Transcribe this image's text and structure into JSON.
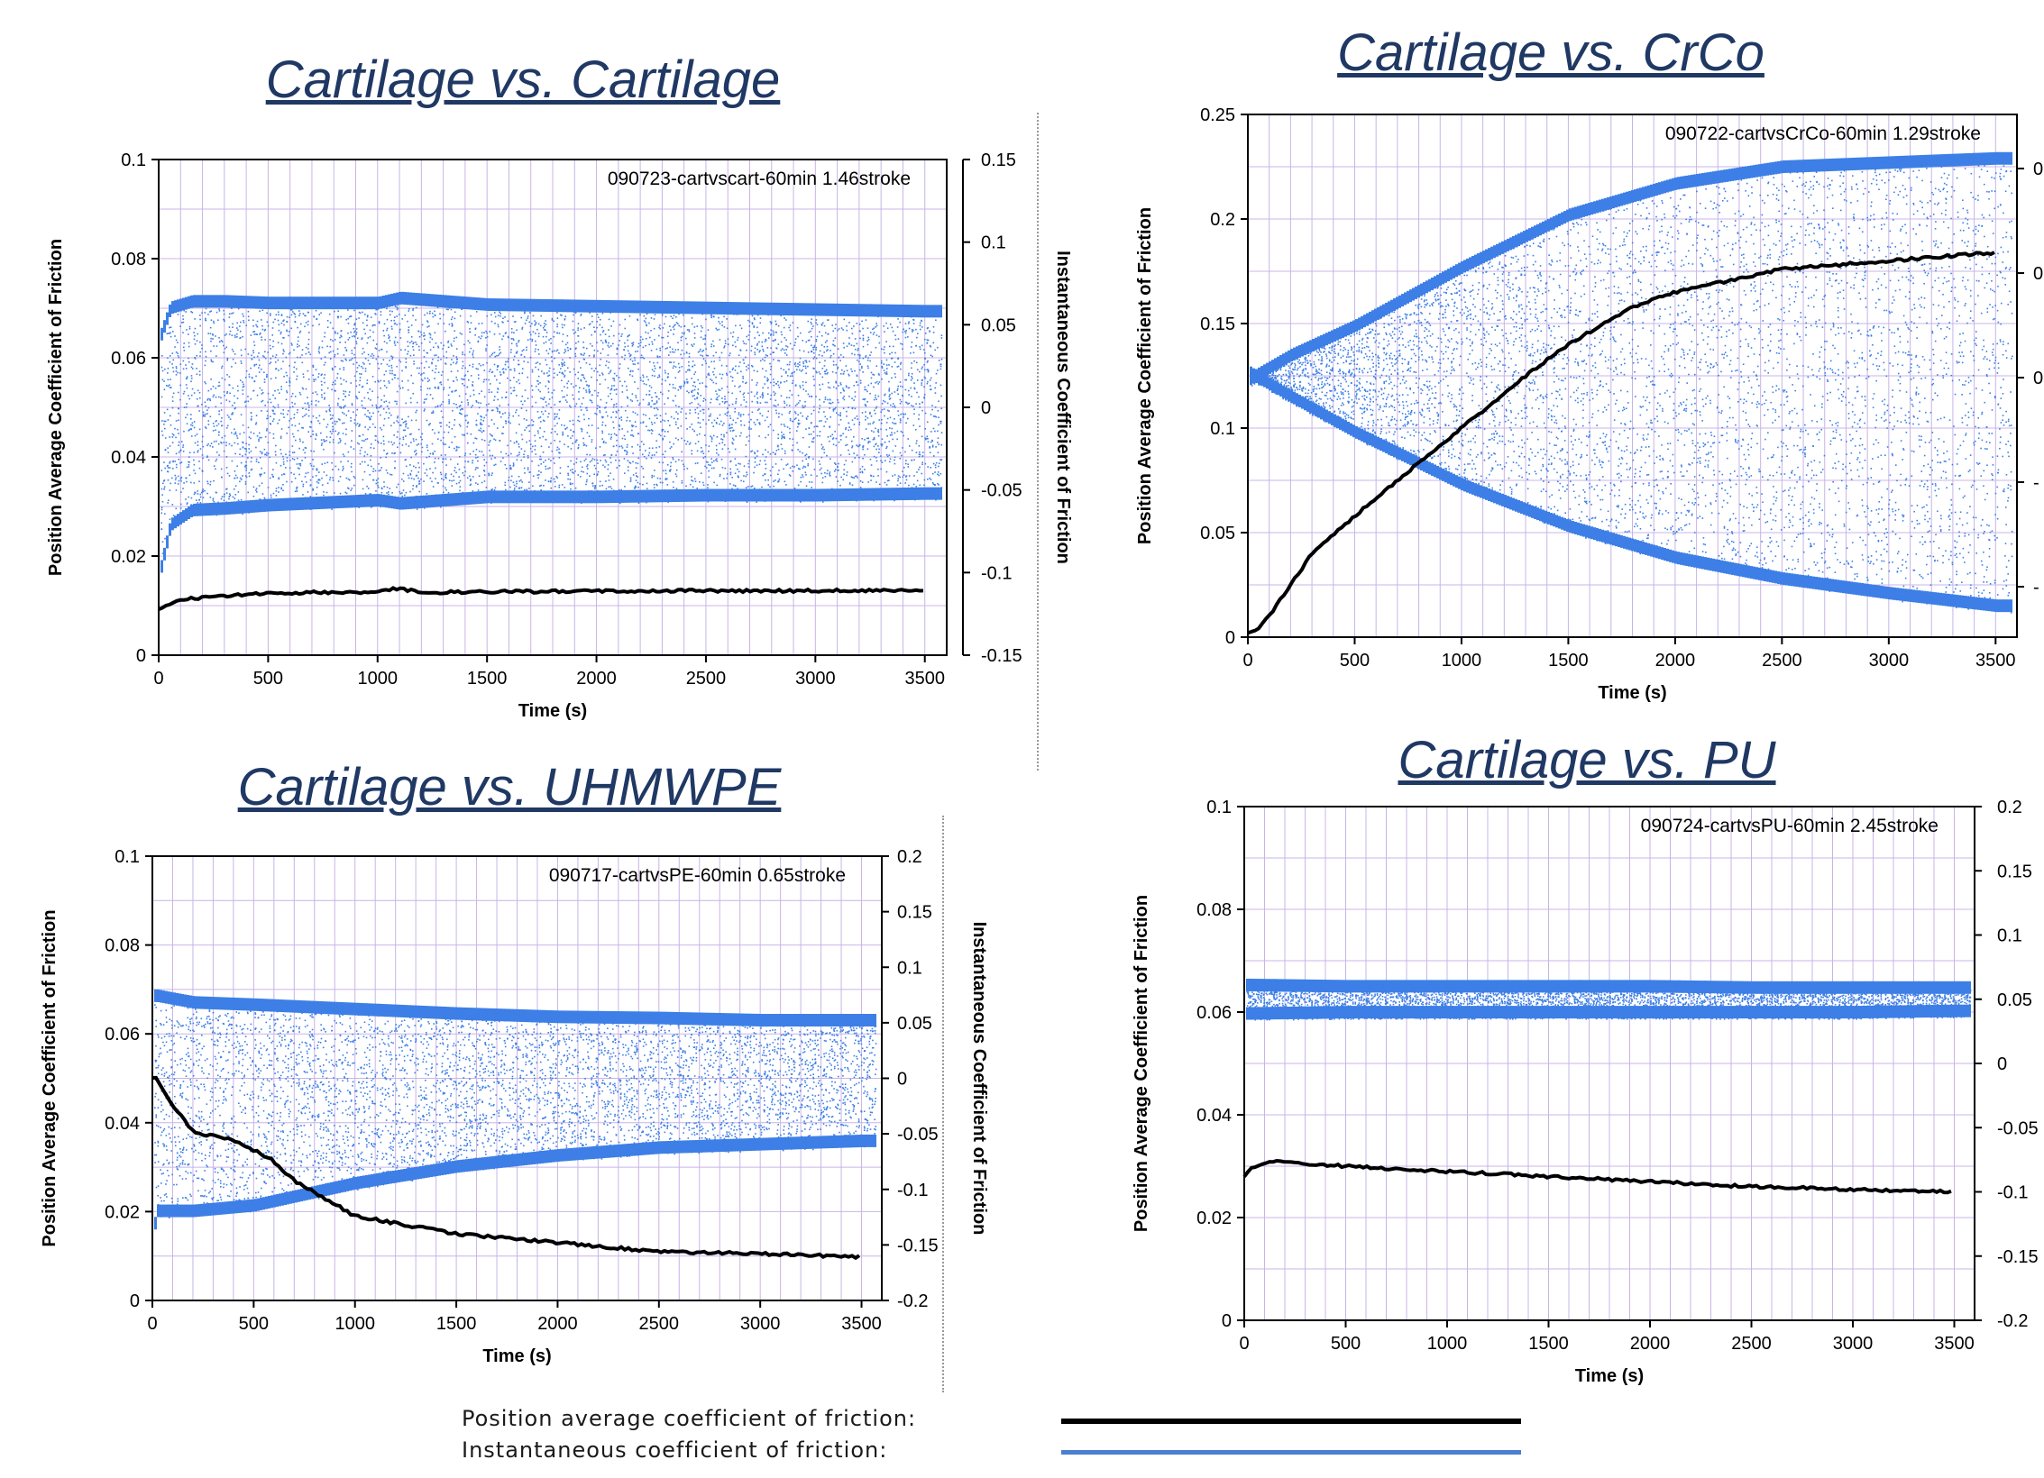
{
  "chart_data": [
    {
      "type": "scatter",
      "title": "Cartilage vs. Cartilage",
      "annotation": "090723-cartvscart-60min 1.46stroke",
      "xlabel": "Time (s)",
      "ylabel": "Position Average Coefficient of Friction",
      "y2label": "Instantaneous Coefficient of Friction",
      "xlim": [
        0,
        3600
      ],
      "ylim": [
        0,
        0.1
      ],
      "y2lim": [
        -0.15,
        0.15
      ],
      "xticks": [
        "0",
        "500",
        "1000",
        "1500",
        "2000",
        "2500",
        "3000",
        "3500"
      ],
      "yticks": [
        "0",
        "0.02",
        "0.04",
        "0.06",
        "0.08",
        "0.1"
      ],
      "y2ticks": [
        "-0.15",
        "-0.1",
        "-0.05",
        "0",
        "0.05",
        "0.1",
        "0.15"
      ],
      "series": [
        {
          "name": "Position average coefficient of friction",
          "color": "#000000",
          "x": [
            0,
            100,
            300,
            500,
            800,
            1000,
            1100,
            1200,
            1500,
            2000,
            2500,
            3000,
            3500
          ],
          "y": [
            0.0095,
            0.0112,
            0.012,
            0.0125,
            0.0127,
            0.0128,
            0.0135,
            0.0126,
            0.0128,
            0.0129,
            0.013,
            0.013,
            0.0131
          ]
        },
        {
          "name": "Instantaneous coefficient of friction",
          "color": "#3d7fe6",
          "x": [
            0,
            50,
            150,
            300,
            500,
            1000,
            1100,
            1500,
            2000,
            2500,
            3000,
            3500
          ],
          "upper": [
            0.045,
            0.064,
            0.068,
            0.068,
            0.067,
            0.067,
            0.07,
            0.066,
            0.065,
            0.064,
            0.063,
            0.062
          ],
          "lower": [
            -0.105,
            -0.075,
            -0.066,
            -0.065,
            -0.063,
            -0.06,
            -0.062,
            -0.058,
            -0.058,
            -0.057,
            -0.057,
            -0.056
          ]
        }
      ]
    },
    {
      "type": "scatter",
      "title": "Cartilage vs. CrCo",
      "annotation": "090722-cartvsCrCo-60min 1.29stroke",
      "xlabel": "Time (s)",
      "ylabel": "Position Average Coefficient of Friction",
      "xlim": [
        0,
        3600
      ],
      "ylim": [
        0,
        0.25
      ],
      "xticks": [
        "0",
        "500",
        "1000",
        "1500",
        "2000",
        "2500",
        "3000",
        "3500"
      ],
      "yticks": [
        "0",
        "0.05",
        "0.1",
        "0.15",
        "0.2",
        "0.25"
      ],
      "y2ticks": [
        "0",
        "0",
        "0",
        "-",
        "-"
      ],
      "series": [
        {
          "name": "Position average coefficient of friction",
          "color": "#000000",
          "x": [
            0,
            50,
            100,
            200,
            300,
            500,
            700,
            1000,
            1300,
            1500,
            1800,
            2000,
            2500,
            3000,
            3500
          ],
          "y": [
            0.002,
            0.004,
            0.01,
            0.025,
            0.04,
            0.058,
            0.075,
            0.1,
            0.125,
            0.14,
            0.158,
            0.165,
            0.176,
            0.18,
            0.184
          ]
        },
        {
          "name": "Instantaneous coefficient of friction",
          "color": "#3d7fe6",
          "x": [
            0,
            30,
            200,
            500,
            1000,
            1500,
            2000,
            2500,
            3000,
            3500
          ],
          "upper": [
            0.13,
            0.128,
            0.138,
            0.152,
            0.18,
            0.205,
            0.22,
            0.228,
            0.23,
            0.232
          ],
          "lower": [
            0.12,
            0.122,
            0.112,
            0.095,
            0.07,
            0.05,
            0.035,
            0.025,
            0.018,
            0.012
          ]
        }
      ]
    },
    {
      "type": "scatter",
      "title": "Cartilage vs. UHMWPE",
      "annotation": "090717-cartvsPE-60min 0.65stroke",
      "xlabel": "Time (s)",
      "ylabel": "Position Average Coefficient of Friction",
      "y2label": "Instantaneous Coefficient of Friction",
      "xlim": [
        0,
        3600
      ],
      "ylim": [
        0,
        0.1
      ],
      "y2lim": [
        -0.2,
        0.2
      ],
      "xticks": [
        "0",
        "500",
        "1000",
        "1500",
        "2000",
        "2500",
        "3000",
        "3500"
      ],
      "yticks": [
        "0",
        "0.02",
        "0.04",
        "0.06",
        "0.08",
        "0.1"
      ],
      "y2ticks": [
        "-0.2",
        "-0.15",
        "-0.1",
        "-0.05",
        "0",
        "0.05",
        "0.1",
        "0.15",
        "0.2"
      ],
      "series": [
        {
          "name": "Position average coefficient of friction",
          "color": "#000000",
          "x": [
            0,
            20,
            100,
            200,
            400,
            580,
            700,
            1000,
            1500,
            2000,
            2500,
            3000,
            3500
          ],
          "y": [
            0.05,
            0.05,
            0.044,
            0.038,
            0.036,
            0.032,
            0.027,
            0.019,
            0.015,
            0.013,
            0.011,
            0.0105,
            0.0098
          ]
        },
        {
          "name": "Instantaneous coefficient of friction",
          "color": "#3d7fe6",
          "x": [
            0,
            20,
            200,
            500,
            1000,
            1500,
            2000,
            2500,
            3000,
            3500
          ],
          "upper": [
            0.08,
            0.08,
            0.074,
            0.072,
            0.068,
            0.064,
            0.061,
            0.06,
            0.058,
            0.058
          ],
          "lower": [
            -0.145,
            -0.125,
            -0.125,
            -0.12,
            -0.1,
            -0.085,
            -0.075,
            -0.068,
            -0.065,
            -0.062
          ]
        }
      ]
    },
    {
      "type": "scatter",
      "title": "Cartilage vs. PU",
      "annotation": "090724-cartvsPU-60min 2.45stroke",
      "xlabel": "Time (s)",
      "ylabel": "Position Average Coefficient of Friction",
      "xlim": [
        0,
        3600
      ],
      "ylim": [
        0,
        0.1
      ],
      "y2lim": [
        -0.2,
        0.2
      ],
      "xticks": [
        "0",
        "500",
        "1000",
        "1500",
        "2000",
        "2500",
        "3000",
        "3500"
      ],
      "yticks": [
        "0",
        "0.02",
        "0.04",
        "0.06",
        "0.08",
        "0.1"
      ],
      "y2ticks": [
        "-0.2",
        "-0.15",
        "-0.1",
        "-0.05",
        "0",
        "0.05",
        "0.1",
        "0.15",
        "0.2"
      ],
      "series": [
        {
          "name": "Position average coefficient of friction",
          "color": "#000000",
          "x": [
            0,
            50,
            150,
            500,
            1000,
            1500,
            2000,
            2500,
            3000,
            3500
          ],
          "y": [
            0.028,
            0.03,
            0.031,
            0.03,
            0.029,
            0.028,
            0.027,
            0.026,
            0.0255,
            0.025
          ]
        },
        {
          "name": "Instantaneous coefficient of friction",
          "color": "#3d7fe6",
          "x": [
            0,
            20,
            500,
            1000,
            1500,
            2000,
            2500,
            3000,
            3500
          ],
          "upper": [
            0.066,
            0.066,
            0.065,
            0.065,
            0.065,
            0.065,
            0.064,
            0.064,
            0.064
          ],
          "lower": [
            0.034,
            0.034,
            0.035,
            0.035,
            0.035,
            0.035,
            0.035,
            0.035,
            0.036
          ]
        }
      ]
    }
  ],
  "legend": {
    "position_average_label": "Position average coefficient of friction:",
    "instantaneous_label": "Instantaneous coefficient of friction:",
    "position_average_color": "#000000",
    "instantaneous_color": "#3d7fe6"
  }
}
